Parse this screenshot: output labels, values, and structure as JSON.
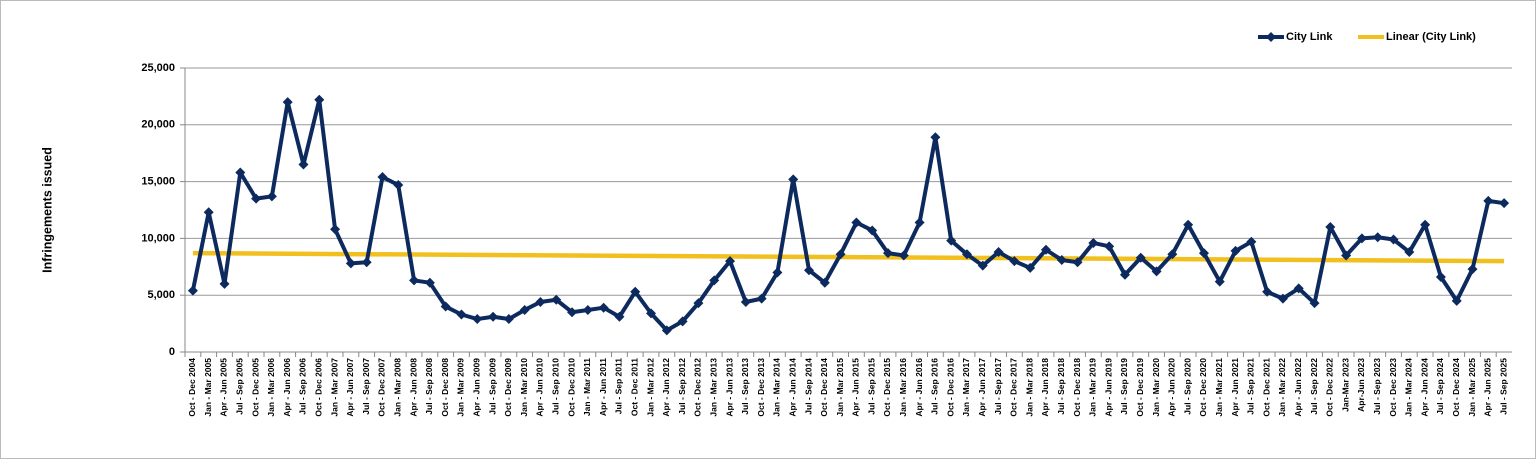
{
  "chart_data": {
    "type": "line",
    "y_label": "Infringements issued",
    "categories": [
      "Oct - Dec 2004",
      "Jan - Mar 2005",
      "Apr - Jun 2005",
      "Jul - Sep 2005",
      "Oct - Dec 2005",
      "Jan - Mar 2006",
      "Apr - Jun 2006",
      "Jul - Sep 2006",
      "Oct - Dec 2006",
      "Jan - Mar 2007",
      "Apr - Jun 2007",
      "Jul - Sep 2007",
      "Oct - Dec 2007",
      "Jan - Mar 2008",
      "Apr - Jun 2008",
      "Jul - Sep 2008",
      "Oct - Dec 2008",
      "Jan - Mar 2009",
      "Apr - Jun 2009",
      "Jul - Sep 2009",
      "Oct - Dec 2009",
      "Jan - Mar 2010",
      "Apr - Jun 2010",
      "Jul - Sep 2010",
      "Oct - Dec 2010",
      "Jan - Mar 2011",
      "Apr - Jun 2011",
      "Jul - Sep 2011",
      "Oct - Dec 2011",
      "Jan - Mar 2012",
      "Apr - Jun 2012",
      "Jul - Sep 2012",
      "Oct - Dec 2012",
      "Jan - Mar 2013",
      "Apr - Jun 2013",
      "Jul - Sep 2013",
      "Oct - Dec 2013",
      "Jan - Mar 2014",
      "Apr - Jun 2014",
      "Jul - Sep 2014",
      "Oct - Dec 2014",
      "Jan - Mar 2015",
      "Apr - Jun 2015",
      "Jul - Sep 2015",
      "Oct - Dec 2015",
      "Jan - Mar 2016",
      "Apr - Jun 2016",
      "Jul - Sep 2016",
      "Oct - Dec 2016",
      "Jan - Mar 2017",
      "Apr - Jun 2017",
      "Jul - Sep 2017",
      "Oct - Dec 2017",
      "Jan - Mar 2018",
      "Apr - Jun 2018",
      "Jul - Sep 2018",
      "Oct - Dec 2018",
      "Jan - Mar 2019",
      "Apr - Jun 2019",
      "Jul - Sep 2019",
      "Oct - Dec 2019",
      "Jan - Mar 2020",
      "Apr - Jun 2020",
      "Jul - Sep 2020",
      "Oct - Dec 2020",
      "Jan - Mar 2021",
      "Apr - Jun 2021",
      "Jul - Sep 2021",
      "Oct - Dec 2021",
      "Jan - Mar 2022",
      "Apr - Jun 2022",
      "Jul - Sep 2022",
      "Oct - Dec 2022",
      "Jan-Mar 2023",
      "Apr-Jun 2023",
      "Jul - Sep 2023",
      "Oct - Dec 2023",
      "Jan - Mar 2024",
      "Apr - Jun 2024",
      "Jul - Sep 2024",
      "Oct - Dec 2024",
      "Jan - Mar 2025",
      "Apr - Jun 2025",
      "Jul - Sep 2025"
    ],
    "series": [
      {
        "name": "City Link",
        "color": "#0d2a5f",
        "values": [
          5400,
          12300,
          6000,
          15800,
          13500,
          13700,
          22000,
          16500,
          22200,
          10800,
          7800,
          7900,
          15400,
          14700,
          6300,
          6100,
          4000,
          3300,
          2900,
          3100,
          2900,
          3700,
          4400,
          4600,
          3500,
          3700,
          3900,
          3100,
          5300,
          3400,
          1900,
          2700,
          4300,
          6300,
          8000,
          4400,
          4700,
          7000,
          15200,
          7200,
          6100,
          8600,
          11400,
          10700,
          8700,
          8500,
          11400,
          18900,
          9800,
          8600,
          7600,
          8800,
          8000,
          7400,
          9000,
          8100,
          7900,
          9600,
          9300,
          6800,
          8300,
          7100,
          8600,
          11200,
          8700,
          6200,
          8900,
          9700,
          5300,
          4700,
          5600,
          4300,
          11000,
          8500,
          10000,
          10100,
          9900,
          8800,
          11200,
          6600,
          4500,
          7300,
          13300,
          13100
        ]
      }
    ],
    "trendline": {
      "name": "Linear (City Link)",
      "color": "#f2c01e",
      "start": 8700,
      "end": 8000
    },
    "ylim": [
      0,
      25000
    ],
    "yticks": [
      0,
      {
        "value": 5000,
        "label": "5,000"
      },
      {
        "value": 10000,
        "label": "10,000"
      },
      {
        "value": 15000,
        "label": "15,000"
      },
      {
        "value": 20000,
        "label": "20,000"
      },
      {
        "value": 25000,
        "label": "25,000"
      }
    ],
    "grid": true,
    "legend": "top-right"
  }
}
